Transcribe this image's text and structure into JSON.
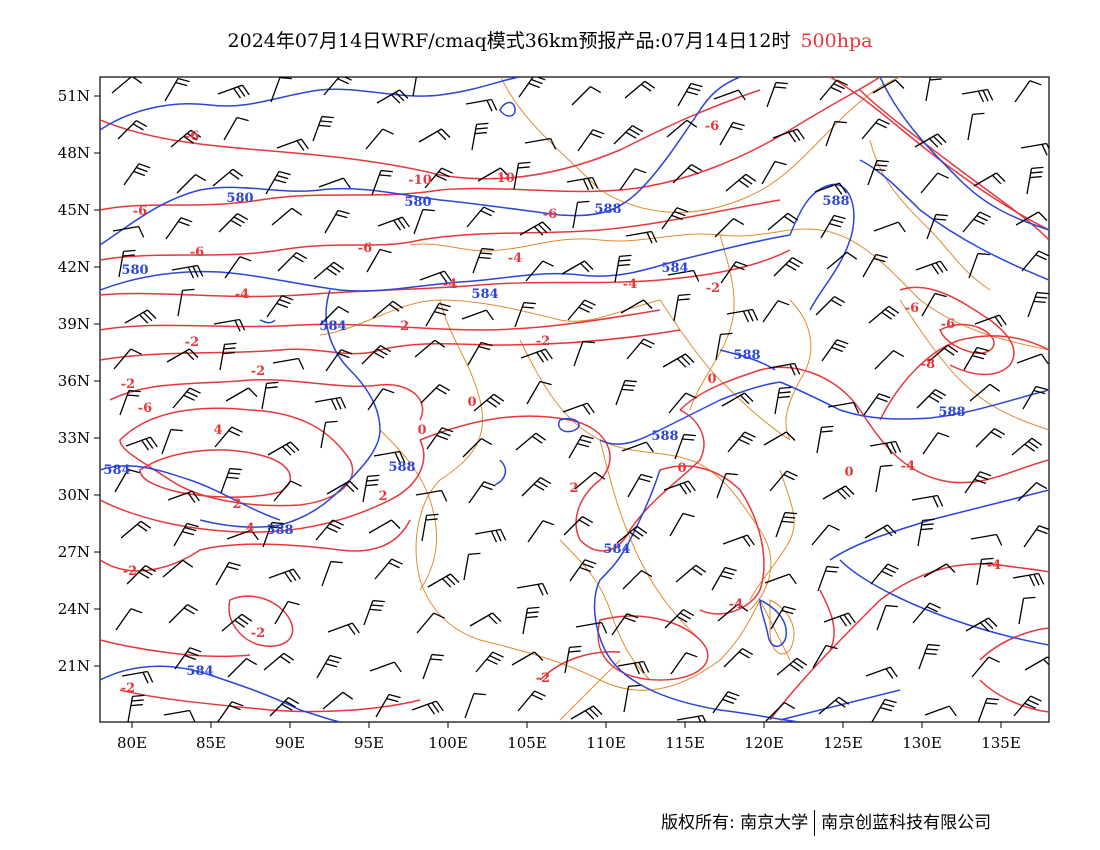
{
  "header": {
    "title": "2024年07月14日WRF/cmaq模式36km预报产品:07月14日12时",
    "level": "500hpa"
  },
  "axes": {
    "x_ticks": [
      "80E",
      "85E",
      "90E",
      "95E",
      "100E",
      "105E",
      "110E",
      "115E",
      "120E",
      "125E",
      "130E",
      "135E"
    ],
    "y_ticks": [
      "51N",
      "48N",
      "45N",
      "42N",
      "39N",
      "36N",
      "33N",
      "30N",
      "27N",
      "24N",
      "21N"
    ]
  },
  "colors": {
    "temperature_contour": "#e8373b",
    "height_contour": "#2a45d8",
    "boundary": "#e08a30",
    "wind_barb": "#000000"
  },
  "icons": {
    "wind": "wind-barb-icon"
  },
  "labels": {
    "temperature": [
      "-6",
      "-10",
      "-10",
      "-6",
      "-6",
      "-6",
      "-6",
      "-4",
      "-4",
      "-4",
      "-4",
      "-2",
      "-2",
      "-2",
      "-2",
      "-2",
      "-2",
      "0",
      "0",
      "0",
      "0",
      "0",
      "2",
      "2",
      "4",
      "2",
      "4",
      "-6",
      "-6",
      "-6",
      "-8",
      "-6",
      "-4",
      "-4",
      "-2",
      "-2",
      "-4",
      "-2",
      "-2"
    ],
    "height": [
      "580",
      "580",
      "580",
      "588",
      "588",
      "584",
      "584",
      "584",
      "588",
      "588",
      "588",
      "588",
      "584",
      "584",
      "588",
      "584"
    ]
  },
  "footer": {
    "copyright": "版权所有: 南京大学",
    "company": "南京创蓝科技有限公司"
  }
}
